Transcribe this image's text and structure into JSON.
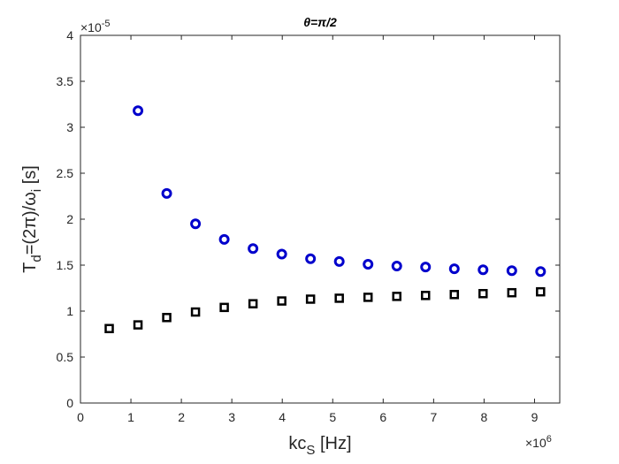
{
  "chart_data": {
    "type": "scatter",
    "title": "θ=π/2",
    "xlabel": "kc_S [Hz]",
    "ylabel": "T_d=(2π)/ω_i [s]",
    "x_multiplier": "×10^6",
    "y_multiplier": "×10^-5",
    "xlim": [
      0,
      9.5
    ],
    "ylim": [
      0,
      4
    ],
    "x_ticks": [
      0,
      1,
      2,
      3,
      4,
      5,
      6,
      7,
      8,
      9
    ],
    "y_ticks": [
      0,
      0.5,
      1,
      1.5,
      2,
      2.5,
      3,
      3.5,
      4
    ],
    "x_tick_labels": [
      "0",
      "1",
      "2",
      "3",
      "4",
      "5",
      "6",
      "7",
      "8",
      "9"
    ],
    "y_tick_labels": [
      "0",
      "0.5",
      "1",
      "1.5",
      "2",
      "2.5",
      "3",
      "3.5",
      "4"
    ],
    "grid": false,
    "series": [
      {
        "marker": "circle",
        "color": "#0000cc",
        "x": [
          1.14,
          1.71,
          2.28,
          2.85,
          3.42,
          3.99,
          4.56,
          5.13,
          5.7,
          6.27,
          6.84,
          7.41,
          7.98,
          8.55,
          9.12
        ],
        "y": [
          3.18,
          2.28,
          1.95,
          1.78,
          1.68,
          1.62,
          1.57,
          1.54,
          1.51,
          1.49,
          1.48,
          1.46,
          1.45,
          1.44,
          1.43
        ]
      },
      {
        "marker": "square",
        "color": "#000000",
        "x": [
          0.57,
          1.14,
          1.71,
          2.28,
          2.85,
          3.42,
          3.99,
          4.56,
          5.13,
          5.7,
          6.27,
          6.84,
          7.41,
          7.98,
          8.55,
          9.12
        ],
        "y": [
          0.81,
          0.85,
          0.93,
          0.99,
          1.04,
          1.08,
          1.11,
          1.13,
          1.14,
          1.15,
          1.16,
          1.17,
          1.18,
          1.19,
          1.2,
          1.21
        ]
      }
    ]
  }
}
